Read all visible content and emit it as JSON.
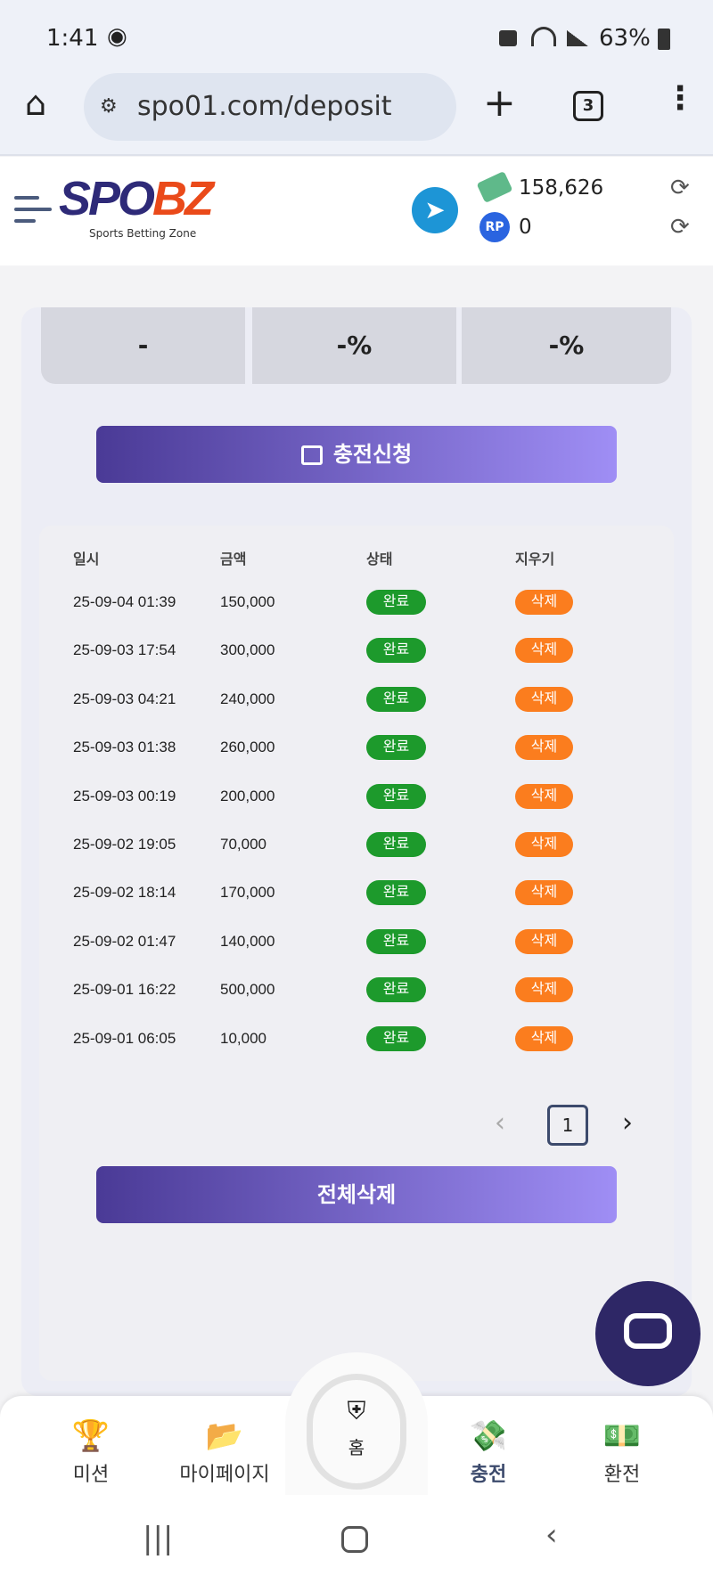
{
  "status_bar": {
    "time": "1:41",
    "battery": "63%"
  },
  "browser": {
    "url": "spo01.com/deposit",
    "tab_count": "3"
  },
  "header": {
    "logo_main": "SPO",
    "logo_accent": "BZ",
    "logo_sub": "Sports Betting Zone",
    "balance": "158,626",
    "points": "0"
  },
  "stats": [
    {
      "value": "-"
    },
    {
      "value": "-%"
    },
    {
      "value": "-%"
    }
  ],
  "apply_button": "충전신청",
  "table": {
    "headers": [
      "일시",
      "금액",
      "상태",
      "지우기"
    ],
    "rows": [
      {
        "date": "25-09-04 01:39",
        "amount": "150,000",
        "status": "완료",
        "action": "삭제"
      },
      {
        "date": "25-09-03 17:54",
        "amount": "300,000",
        "status": "완료",
        "action": "삭제"
      },
      {
        "date": "25-09-03 04:21",
        "amount": "240,000",
        "status": "완료",
        "action": "삭제"
      },
      {
        "date": "25-09-03 01:38",
        "amount": "260,000",
        "status": "완료",
        "action": "삭제"
      },
      {
        "date": "25-09-03 00:19",
        "amount": "200,000",
        "status": "완료",
        "action": "삭제"
      },
      {
        "date": "25-09-02 19:05",
        "amount": "70,000",
        "status": "완료",
        "action": "삭제"
      },
      {
        "date": "25-09-02 18:14",
        "amount": "170,000",
        "status": "완료",
        "action": "삭제"
      },
      {
        "date": "25-09-02 01:47",
        "amount": "140,000",
        "status": "완료",
        "action": "삭제"
      },
      {
        "date": "25-09-01 16:22",
        "amount": "500,000",
        "status": "완료",
        "action": "삭제"
      },
      {
        "date": "25-09-01 06:05",
        "amount": "10,000",
        "status": "완료",
        "action": "삭제"
      }
    ]
  },
  "pagination": {
    "current": "1"
  },
  "delete_all_button": "전체삭제",
  "bottom_nav": [
    {
      "label": "미션",
      "icon": "trophy-icon"
    },
    {
      "label": "마이페이지",
      "icon": "folder-icon"
    },
    {
      "label": "홈",
      "icon": "home-emblem-icon"
    },
    {
      "label": "충전",
      "icon": "deposit-icon"
    },
    {
      "label": "환전",
      "icon": "withdraw-icon"
    }
  ],
  "colors": {
    "accent_start": "#4a3a96",
    "accent_end": "#9f8ef5",
    "status_green": "#1d9a2c",
    "delete_orange": "#fb7d1e"
  }
}
